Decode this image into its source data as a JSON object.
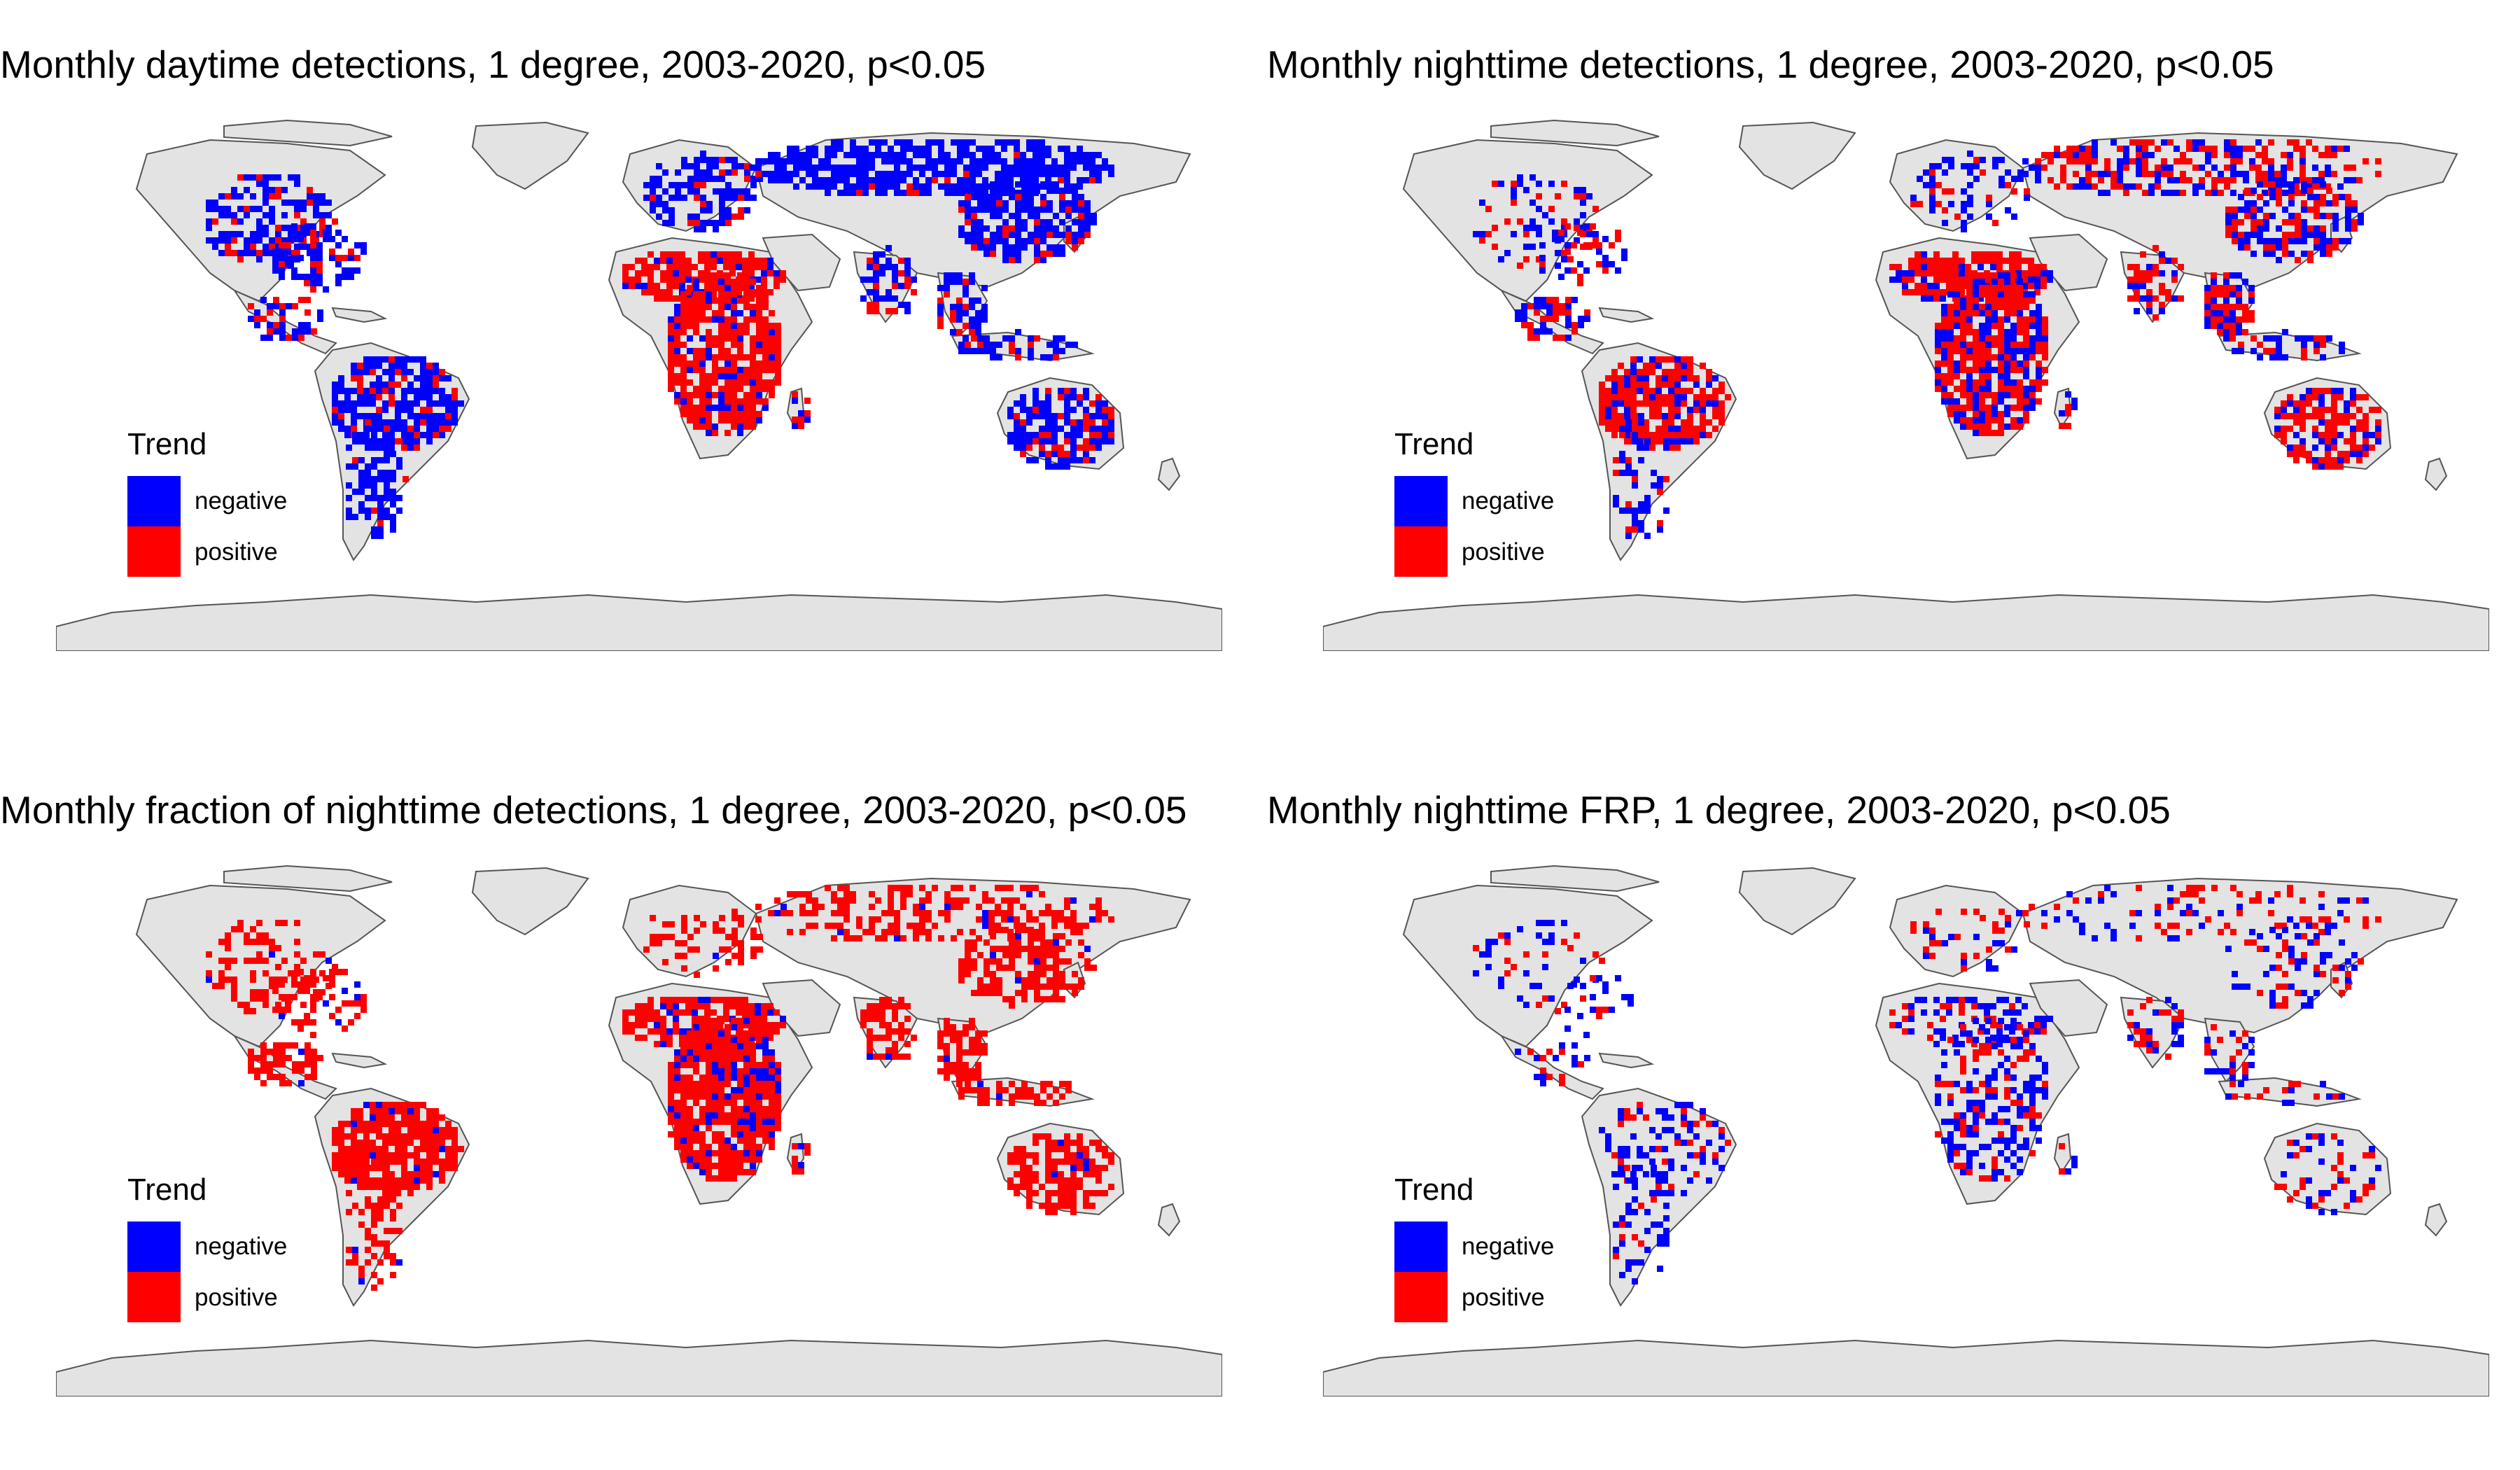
{
  "colors": {
    "land": "#e3e3e3",
    "border": "#555555",
    "negative": "#0000ff",
    "positive": "#ff0000"
  },
  "panels": [
    {
      "title": "Monthly daytime detections, 1 degree, 2003-2020, p<0.05",
      "legend": {
        "title": "Trend",
        "items": [
          "negative",
          "positive"
        ]
      },
      "regions": [
        {
          "name": "north-america",
          "blue": 0.85,
          "red": 0.2,
          "density": 0.55
        },
        {
          "name": "mexico-central-america",
          "blue": 0.7,
          "red": 0.4,
          "density": 0.6
        },
        {
          "name": "amazon-brazil",
          "blue": 0.8,
          "red": 0.25,
          "density": 0.75
        },
        {
          "name": "argentina",
          "blue": 0.85,
          "red": 0.15,
          "density": 0.6
        },
        {
          "name": "sahel",
          "blue": 0.15,
          "red": 0.9,
          "density": 0.8
        },
        {
          "name": "central-southern-africa",
          "blue": 0.2,
          "red": 0.85,
          "density": 0.8
        },
        {
          "name": "madagascar",
          "blue": 0.4,
          "red": 0.7,
          "density": 0.6
        },
        {
          "name": "europe",
          "blue": 0.9,
          "red": 0.1,
          "density": 0.5
        },
        {
          "name": "russia-siberia",
          "blue": 0.95,
          "red": 0.05,
          "density": 0.75
        },
        {
          "name": "india",
          "blue": 0.7,
          "red": 0.4,
          "density": 0.6
        },
        {
          "name": "china",
          "blue": 0.85,
          "red": 0.15,
          "density": 0.75
        },
        {
          "name": "southeast-asia",
          "blue": 0.85,
          "red": 0.3,
          "density": 0.7
        },
        {
          "name": "indonesia",
          "blue": 0.8,
          "red": 0.2,
          "density": 0.6
        },
        {
          "name": "australia",
          "blue": 0.85,
          "red": 0.35,
          "density": 0.75
        }
      ]
    },
    {
      "title": "Monthly nighttime detections, 1 degree, 2003-2020, p<0.05",
      "legend": {
        "title": "Trend",
        "items": [
          "negative",
          "positive"
        ]
      },
      "regions": [
        {
          "name": "north-america",
          "blue": 0.5,
          "red": 0.5,
          "density": 0.3
        },
        {
          "name": "mexico-central-america",
          "blue": 0.5,
          "red": 0.8,
          "density": 0.6
        },
        {
          "name": "amazon-brazil",
          "blue": 0.3,
          "red": 0.9,
          "density": 0.85
        },
        {
          "name": "argentina",
          "blue": 0.6,
          "red": 0.3,
          "density": 0.35
        },
        {
          "name": "sahel",
          "blue": 0.3,
          "red": 0.9,
          "density": 0.85
        },
        {
          "name": "central-southern-africa",
          "blue": 0.5,
          "red": 0.9,
          "density": 0.85
        },
        {
          "name": "madagascar",
          "blue": 0.5,
          "red": 0.6,
          "density": 0.5
        },
        {
          "name": "europe",
          "blue": 0.7,
          "red": 0.4,
          "density": 0.35
        },
        {
          "name": "russia-siberia",
          "blue": 0.6,
          "red": 0.7,
          "density": 0.55
        },
        {
          "name": "india",
          "blue": 0.4,
          "red": 0.7,
          "density": 0.5
        },
        {
          "name": "china",
          "blue": 0.7,
          "red": 0.5,
          "density": 0.6
        },
        {
          "name": "southeast-asia",
          "blue": 0.5,
          "red": 0.9,
          "density": 0.8
        },
        {
          "name": "indonesia",
          "blue": 0.5,
          "red": 0.6,
          "density": 0.45
        },
        {
          "name": "australia",
          "blue": 0.4,
          "red": 0.9,
          "density": 0.7
        }
      ]
    },
    {
      "title": "Monthly fraction of nighttime detections, 1 degree, 2003-2020, p<0.05",
      "legend": {
        "title": "Trend",
        "items": [
          "negative",
          "positive"
        ]
      },
      "regions": [
        {
          "name": "north-america",
          "blue": 0.05,
          "red": 0.95,
          "density": 0.35
        },
        {
          "name": "mexico-central-america",
          "blue": 0.05,
          "red": 0.95,
          "density": 0.7
        },
        {
          "name": "amazon-brazil",
          "blue": 0.05,
          "red": 0.95,
          "density": 0.85
        },
        {
          "name": "argentina",
          "blue": 0.05,
          "red": 0.95,
          "density": 0.45
        },
        {
          "name": "sahel",
          "blue": 0.1,
          "red": 0.95,
          "density": 0.8
        },
        {
          "name": "central-southern-africa",
          "blue": 0.3,
          "red": 0.95,
          "density": 0.85
        },
        {
          "name": "madagascar",
          "blue": 0.3,
          "red": 0.9,
          "density": 0.6
        },
        {
          "name": "europe",
          "blue": 0.05,
          "red": 0.95,
          "density": 0.35
        },
        {
          "name": "russia-siberia",
          "blue": 0.05,
          "red": 0.95,
          "density": 0.5
        },
        {
          "name": "india",
          "blue": 0.05,
          "red": 0.95,
          "density": 0.55
        },
        {
          "name": "china",
          "blue": 0.05,
          "red": 0.95,
          "density": 0.6
        },
        {
          "name": "southeast-asia",
          "blue": 0.05,
          "red": 0.95,
          "density": 0.75
        },
        {
          "name": "indonesia",
          "blue": 0.05,
          "red": 0.95,
          "density": 0.45
        },
        {
          "name": "australia",
          "blue": 0.05,
          "red": 0.95,
          "density": 0.7
        }
      ]
    },
    {
      "title": "Monthly nighttime FRP, 1 degree, 2003-2020, p<0.05",
      "legend": {
        "title": "Trend",
        "items": [
          "negative",
          "positive"
        ]
      },
      "regions": [
        {
          "name": "north-america",
          "blue": 0.8,
          "red": 0.3,
          "density": 0.2
        },
        {
          "name": "mexico-central-america",
          "blue": 0.8,
          "red": 0.5,
          "density": 0.3
        },
        {
          "name": "amazon-brazil",
          "blue": 0.9,
          "red": 0.3,
          "density": 0.4
        },
        {
          "name": "argentina",
          "blue": 0.8,
          "red": 0.3,
          "density": 0.25
        },
        {
          "name": "sahel",
          "blue": 0.9,
          "red": 0.4,
          "density": 0.45
        },
        {
          "name": "central-southern-africa",
          "blue": 0.85,
          "red": 0.5,
          "density": 0.45
        },
        {
          "name": "madagascar",
          "blue": 0.7,
          "red": 0.3,
          "density": 0.35
        },
        {
          "name": "europe",
          "blue": 0.6,
          "red": 0.6,
          "density": 0.25
        },
        {
          "name": "russia-siberia",
          "blue": 0.5,
          "red": 0.7,
          "density": 0.2
        },
        {
          "name": "india",
          "blue": 0.7,
          "red": 0.6,
          "density": 0.35
        },
        {
          "name": "china",
          "blue": 0.7,
          "red": 0.6,
          "density": 0.3
        },
        {
          "name": "southeast-asia",
          "blue": 0.7,
          "red": 0.7,
          "density": 0.4
        },
        {
          "name": "indonesia",
          "blue": 0.7,
          "red": 0.4,
          "density": 0.25
        },
        {
          "name": "australia",
          "blue": 0.6,
          "red": 0.6,
          "density": 0.25
        }
      ]
    }
  ]
}
